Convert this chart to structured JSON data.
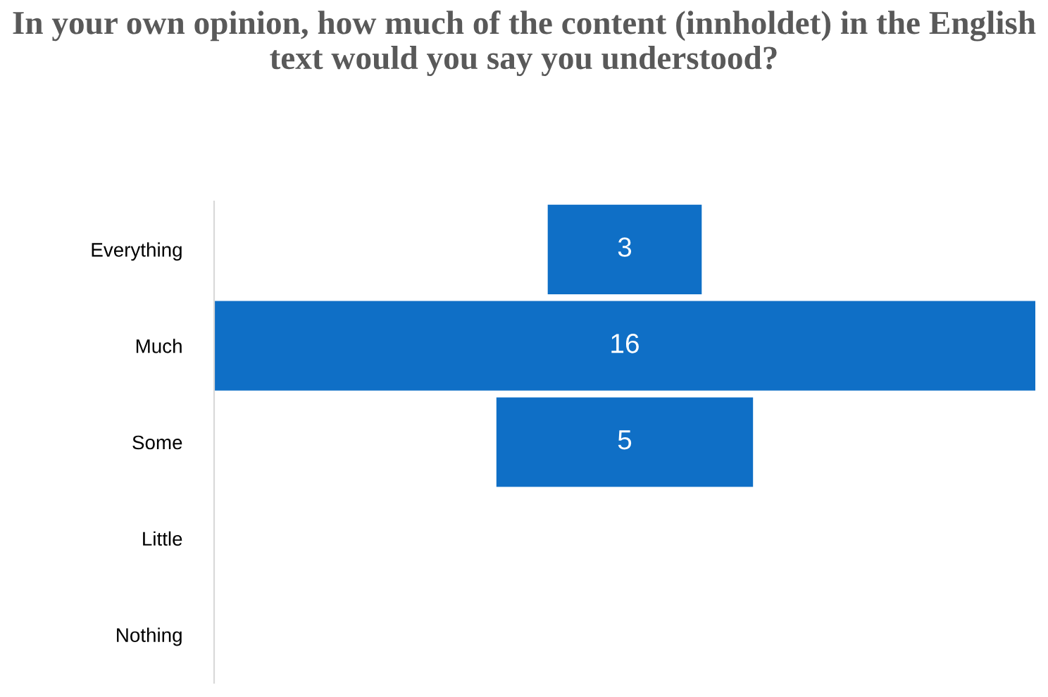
{
  "chart_data": {
    "type": "other",
    "title": "In your own opinion, how much of the content (innholdet) in the English text would you say you understood?",
    "categories": [
      "Everything",
      "Much",
      "Some",
      "Little",
      "Nothing"
    ],
    "values": [
      3,
      16,
      5,
      null,
      null
    ],
    "color": "#0f6fc6",
    "value_labels": [
      "3",
      "16",
      "5",
      null,
      null
    ]
  }
}
